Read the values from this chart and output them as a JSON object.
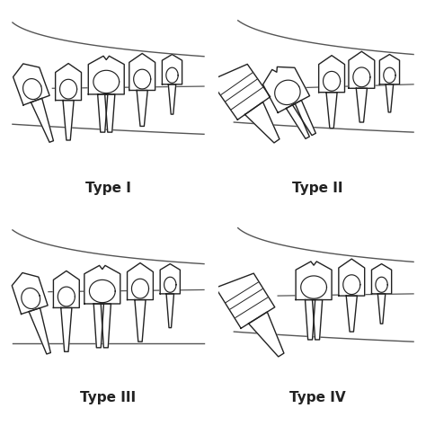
{
  "bg_color": "#ffffff",
  "text_color": "#222222",
  "line_color": "#222222",
  "jaw_color": "#555555",
  "labels": [
    "Type I",
    "Type II",
    "Type III",
    "Type IV"
  ],
  "label_fontsize": 11,
  "label_fontweight": "bold",
  "lw": 1.0
}
